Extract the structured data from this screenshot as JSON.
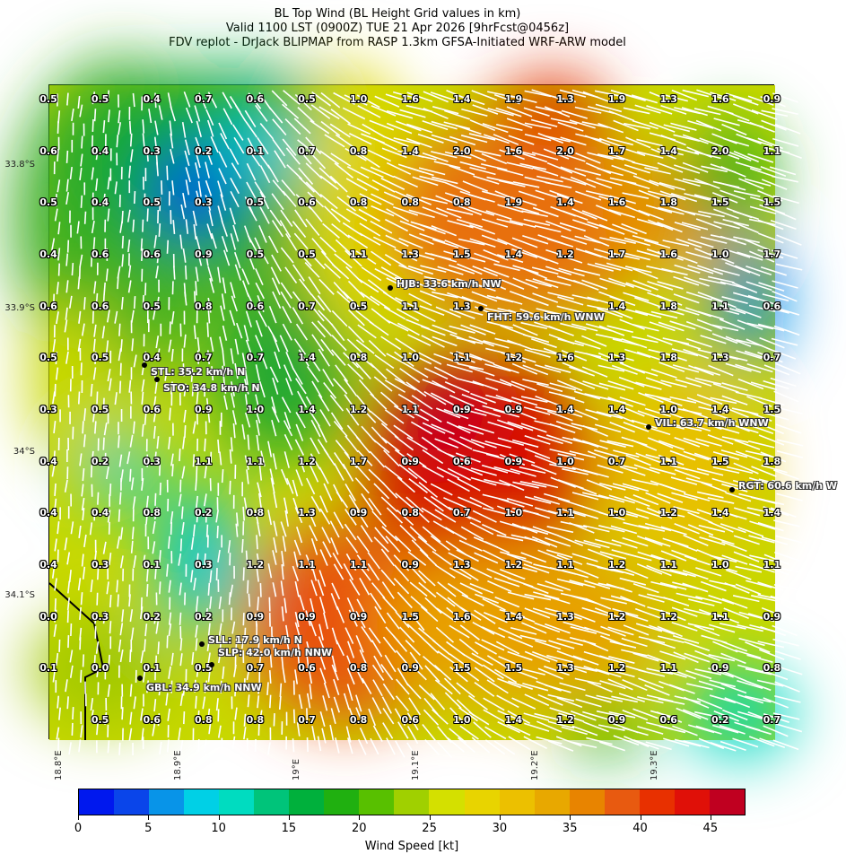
{
  "title": {
    "line1": "BL Top Wind (BL Height Grid values in km)",
    "line2": "Valid 1100 LST (0900Z) TUE 21 Apr 2026 [9hrFcst@0456z]",
    "line3": "FDV replot - DrJack BLIPMAP from RASP 1.3km GFSA-Initiated WRF-ARW model"
  },
  "map": {
    "lat_labels": [
      "33.8°S",
      "33.9°S",
      "34°S",
      "34.1°S"
    ],
    "lon_labels": [
      "18.8°E",
      "18.9°E",
      "19°E",
      "19.1°E",
      "19.2°E",
      "19.3°E"
    ],
    "grid_values": [
      [
        "0.5",
        "0.5",
        "0.4",
        "0.7",
        "0.6",
        "0.5",
        "1.0",
        "1.6",
        "1.4",
        "1.9",
        "1.3",
        "1.9",
        "1.3",
        "1.6",
        "0.9"
      ],
      [
        "0.6",
        "0.4",
        "0.3",
        "0.2",
        "0.1",
        "0.7",
        "0.8",
        "1.4",
        "2.0",
        "1.6",
        "2.0",
        "1.7",
        "1.4",
        "2.0",
        "1.1"
      ],
      [
        "0.5",
        "0.4",
        "0.5",
        "0.3",
        "0.5",
        "0.6",
        "0.8",
        "0.8",
        "0.8",
        "1.9",
        "1.4",
        "1.6",
        "1.8",
        "1.5",
        "1.5"
      ],
      [
        "0.4",
        "0.6",
        "0.6",
        "0.9",
        "0.5",
        "0.5",
        "1.1",
        "1.3",
        "1.5",
        "1.4",
        "1.2",
        "1.7",
        "1.6",
        "1.0",
        "1.7"
      ],
      [
        "0.6",
        "0.6",
        "0.5",
        "0.8",
        "0.6",
        "0.7",
        "0.5",
        "1.1",
        "1.3",
        null,
        null,
        "1.4",
        "1.8",
        "1.1",
        "0.6"
      ],
      [
        "0.5",
        "0.5",
        "0.4",
        "0.7",
        "0.7",
        "1.4",
        "0.8",
        "1.0",
        "1.1",
        "1.2",
        "1.6",
        "1.3",
        "1.8",
        "1.3",
        "0.7"
      ],
      [
        "0.3",
        "0.5",
        "0.6",
        "0.9",
        "1.0",
        "1.4",
        "1.2",
        "1.1",
        "0.9",
        "0.9",
        "1.4",
        "1.4",
        "1.0",
        "1.4",
        "1.5"
      ],
      [
        "0.4",
        "0.2",
        "0.3",
        "1.1",
        "1.1",
        "1.2",
        "1.7",
        "0.9",
        "0.6",
        "0.9",
        "1.0",
        "0.7",
        "1.1",
        "1.5",
        "1.8"
      ],
      [
        "0.4",
        "0.4",
        "0.8",
        "0.2",
        "0.8",
        "1.3",
        "0.9",
        "0.8",
        "0.7",
        "1.0",
        "1.1",
        "1.0",
        "1.2",
        "1.4",
        "1.4"
      ],
      [
        "0.4",
        "0.3",
        "0.1",
        "0.3",
        "1.2",
        "1.1",
        "1.1",
        "0.9",
        "1.3",
        "1.2",
        "1.1",
        "1.2",
        "1.1",
        "1.0",
        "1.1"
      ],
      [
        "0.0",
        "0.3",
        "0.2",
        "0.2",
        "0.9",
        "0.9",
        "0.9",
        "1.5",
        "1.6",
        "1.4",
        "1.3",
        "1.2",
        "1.2",
        "1.1",
        "0.9"
      ],
      [
        "0.1",
        "0.0",
        "0.1",
        "0.5",
        "0.7",
        "0.6",
        "0.8",
        "0.9",
        "1.5",
        "1.5",
        "1.3",
        "1.2",
        "1.1",
        "0.9",
        "0.8"
      ],
      [
        null,
        "0.5",
        "0.6",
        "0.8",
        "0.8",
        "0.7",
        "0.8",
        "0.6",
        "1.0",
        "1.4",
        "1.2",
        "0.9",
        "0.6",
        "0.2",
        "0.7"
      ]
    ],
    "stations": [
      {
        "id": "HJB",
        "label": "HJB: 33.6 km/h NW"
      },
      {
        "id": "FHT",
        "label": "FHT: 59.6 km/h WNW"
      },
      {
        "id": "STL",
        "label": "STL: 35.2 km/h N"
      },
      {
        "id": "STO",
        "label": "STO: 34.8 km/h N"
      },
      {
        "id": "VIL",
        "label": "VIL: 63.7 km/h WNW"
      },
      {
        "id": "RGT",
        "label": "RGT: 60.6 km/h W"
      },
      {
        "id": "SLL",
        "label": "SLL: 17.9 km/h N"
      },
      {
        "id": "SLP",
        "label": "SLP: 42.0 km/h NNW"
      },
      {
        "id": "GBL",
        "label": "GBL: 34.9 km/h NNW"
      }
    ]
  },
  "colorbar": {
    "label": "Wind Speed [kt]",
    "ticks": [
      "0",
      "5",
      "10",
      "15",
      "20",
      "25",
      "30",
      "35",
      "40",
      "45"
    ],
    "range": [
      0,
      47.5
    ],
    "step": 2.5,
    "colors": [
      "#0018ee",
      "#0a45ea",
      "#0894e8",
      "#00d0e6",
      "#00dcc0",
      "#00c47a",
      "#00b03c",
      "#20b010",
      "#58c000",
      "#a0d000",
      "#d4e000",
      "#e8d400",
      "#ecc000",
      "#e8a800",
      "#e88400",
      "#e85a10",
      "#e83000",
      "#e01008",
      "#c00020"
    ]
  }
}
